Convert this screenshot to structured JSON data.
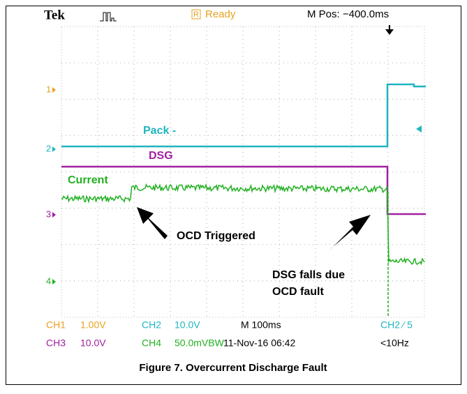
{
  "header": {
    "brand": "Tek",
    "status_badge": "R",
    "status": "Ready",
    "position": "M Pos: −400.0ms"
  },
  "channel_markers": [
    "1",
    "2",
    "3",
    "4"
  ],
  "trace_labels": [
    "Pack -",
    "DSG",
    "Current"
  ],
  "annotations": [
    "OCD Triggered",
    "DSG falls due",
    "OCD fault"
  ],
  "settings": {
    "row1": [
      "CH1",
      "1.00V",
      "CH2",
      "10.0V",
      "M 100ms",
      "CH2 ⁄ 5"
    ],
    "row2": [
      "CH3",
      "10.0V",
      "CH4",
      "50.0mVBW",
      "11-Nov-16 06:42",
      "<10Hz"
    ]
  },
  "caption": "Figure 7. Overcurrent Discharge Fault"
}
